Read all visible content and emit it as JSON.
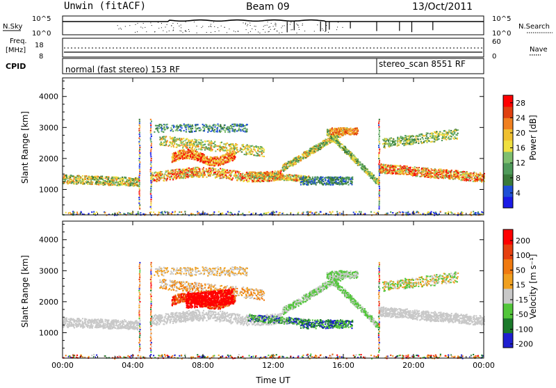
{
  "header": {
    "station": "Unwin (fitACF)",
    "beam": "Beam 09",
    "date": "13/Oct/2011"
  },
  "top_panels": {
    "nsky_label": "N.Sky",
    "nsky_ticks": [
      "10^5",
      "10^0"
    ],
    "nsearch_label": "N.Search",
    "nsearch_ticks": [
      "10^5",
      "10^0"
    ],
    "freq_label": "Freq.",
    "freq_unit": "[MHz]",
    "freq_ticks": [
      "18",
      "8"
    ],
    "nave_label": "Nave",
    "nave_ticks": [
      "60",
      "0"
    ],
    "cpid_label": "CPID",
    "cpid_modes": [
      {
        "label": "normal (fast stereo) 153 RF",
        "start": "00:00",
        "end": "17:59"
      },
      {
        "label": "stereo_scan 8551 RF",
        "start": "18:00",
        "end": "24:00"
      }
    ]
  },
  "colors": {
    "power_scale": [
      "#1a1ae6",
      "#1f4fd6",
      "#3a7a3a",
      "#4f9a5a",
      "#7fbf6f",
      "#f0e040",
      "#f0c030",
      "#f08020",
      "#e04010",
      "#ff0000"
    ],
    "velocity_scale": [
      "#1f1fd0",
      "#1b7a2a",
      "#52c63a",
      "#c8c8c8",
      "#f0a020",
      "#f07a10",
      "#e64010",
      "#ff0000"
    ]
  },
  "chart_data": [
    {
      "type": "heatmap",
      "name": "power",
      "ylabel": "Slant Range [km]",
      "xlim": [
        "00:00",
        "24:00"
      ],
      "ylim": [
        180,
        4600
      ],
      "yticks": [
        "1000",
        "2000",
        "3000",
        "4000"
      ],
      "colorbar": {
        "label": "Power [dB]",
        "ticks": [
          "4",
          "8",
          "12",
          "16",
          "20",
          "24",
          "28"
        ],
        "range": [
          0,
          30
        ]
      },
      "grid": true
    },
    {
      "type": "heatmap",
      "name": "velocity",
      "ylabel": "Slant Range [km]",
      "xlabel": "Time UT",
      "xlim": [
        "00:00",
        "24:00"
      ],
      "ylim": [
        180,
        4600
      ],
      "xticks": [
        "00:00",
        "04:00",
        "08:00",
        "12:00",
        "16:00",
        "20:00",
        "00:00"
      ],
      "yticks": [
        "1000",
        "2000",
        "3000",
        "4000"
      ],
      "colorbar": {
        "label": "Velocity [m s⁻¹]",
        "ticks": [
          "200",
          "100",
          "50",
          "15",
          "-15",
          "-50",
          "-100",
          "-200"
        ]
      },
      "grid": true
    }
  ]
}
